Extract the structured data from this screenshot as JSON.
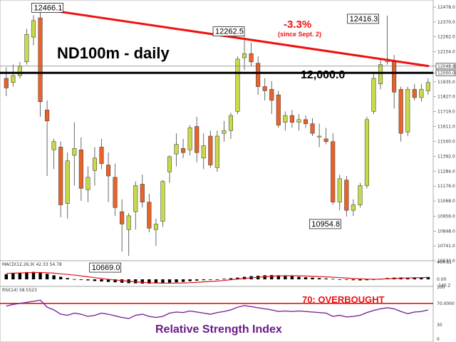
{
  "chart_data": [
    {
      "type": "candlestick",
      "title": "ND100m - daily",
      "price_axis_ticks": [
        "12478.0",
        "12370.0",
        "12262.0",
        "12154.0",
        "12048.8",
        "12000.0",
        "11935.0",
        "11827.0",
        "11719.0",
        "11611.0",
        "11500.0",
        "11392.0",
        "11284.0",
        "11176.0",
        "11068.0",
        "10956.0",
        "10848.0",
        "10741.0",
        "10633.0"
      ],
      "ylim": [
        10633,
        12530
      ],
      "candles": [
        {
          "o": 11960,
          "h": 12040,
          "l": 11830,
          "c": 11890
        },
        {
          "o": 11930,
          "h": 12060,
          "l": 11900,
          "c": 11980
        },
        {
          "o": 11980,
          "h": 12080,
          "l": 11960,
          "c": 12050
        },
        {
          "o": 12080,
          "h": 12320,
          "l": 12060,
          "c": 12280
        },
        {
          "o": 12260,
          "h": 12420,
          "l": 12200,
          "c": 12380
        },
        {
          "o": 12400,
          "h": 12466.1,
          "l": 11680,
          "c": 11790
        },
        {
          "o": 11730,
          "h": 11800,
          "l": 11250,
          "c": 11650
        },
        {
          "o": 11440,
          "h": 11520,
          "l": 11300,
          "c": 11500
        },
        {
          "o": 11460,
          "h": 11500,
          "l": 10950,
          "c": 11040
        },
        {
          "o": 11050,
          "h": 11420,
          "l": 10940,
          "c": 11360
        },
        {
          "o": 11400,
          "h": 11640,
          "l": 11180,
          "c": 11450
        },
        {
          "o": 11440,
          "h": 11530,
          "l": 11070,
          "c": 11160
        },
        {
          "o": 11150,
          "h": 11320,
          "l": 11060,
          "c": 11240
        },
        {
          "o": 11290,
          "h": 11460,
          "l": 11180,
          "c": 11380
        },
        {
          "o": 11460,
          "h": 11520,
          "l": 11300,
          "c": 11340
        },
        {
          "o": 11330,
          "h": 11420,
          "l": 11060,
          "c": 11250
        },
        {
          "o": 11240,
          "h": 11340,
          "l": 10960,
          "c": 11020
        },
        {
          "o": 10990,
          "h": 11080,
          "l": 10700,
          "c": 10900
        },
        {
          "o": 10860,
          "h": 10980,
          "l": 10669,
          "c": 10960
        },
        {
          "o": 10990,
          "h": 11210,
          "l": 10860,
          "c": 11180
        },
        {
          "o": 11190,
          "h": 11260,
          "l": 11020,
          "c": 11060
        },
        {
          "o": 11060,
          "h": 11120,
          "l": 10840,
          "c": 10870
        },
        {
          "o": 10860,
          "h": 10940,
          "l": 10740,
          "c": 10900
        },
        {
          "o": 10920,
          "h": 11220,
          "l": 10880,
          "c": 11210
        },
        {
          "o": 11280,
          "h": 11400,
          "l": 11200,
          "c": 11390
        },
        {
          "o": 11410,
          "h": 11560,
          "l": 11320,
          "c": 11480
        },
        {
          "o": 11450,
          "h": 11520,
          "l": 11380,
          "c": 11420
        },
        {
          "o": 11440,
          "h": 11620,
          "l": 11400,
          "c": 11600
        },
        {
          "o": 11610,
          "h": 11680,
          "l": 11350,
          "c": 11420
        },
        {
          "o": 11380,
          "h": 11560,
          "l": 11300,
          "c": 11470
        },
        {
          "o": 11540,
          "h": 11580,
          "l": 11310,
          "c": 11330
        },
        {
          "o": 11310,
          "h": 11580,
          "l": 11280,
          "c": 11540
        },
        {
          "o": 11560,
          "h": 11650,
          "l": 11500,
          "c": 11580
        },
        {
          "o": 11580,
          "h": 11710,
          "l": 11520,
          "c": 11690
        },
        {
          "o": 11720,
          "h": 12120,
          "l": 11700,
          "c": 12100
        },
        {
          "o": 12110,
          "h": 12262.5,
          "l": 12020,
          "c": 12140
        },
        {
          "o": 12140,
          "h": 12220,
          "l": 12050,
          "c": 12080
        },
        {
          "o": 12070,
          "h": 12120,
          "l": 11840,
          "c": 11900
        },
        {
          "o": 11900,
          "h": 11960,
          "l": 11800,
          "c": 11870
        },
        {
          "o": 11880,
          "h": 11940,
          "l": 11700,
          "c": 11800
        },
        {
          "o": 11840,
          "h": 11870,
          "l": 11600,
          "c": 11620
        },
        {
          "o": 11640,
          "h": 11720,
          "l": 11580,
          "c": 11690
        },
        {
          "o": 11690,
          "h": 11730,
          "l": 11600,
          "c": 11640
        },
        {
          "o": 11640,
          "h": 11700,
          "l": 11580,
          "c": 11660
        },
        {
          "o": 11660,
          "h": 11690,
          "l": 11600,
          "c": 11630
        },
        {
          "o": 11630,
          "h": 11670,
          "l": 11540,
          "c": 11560
        },
        {
          "o": 11540,
          "h": 11630,
          "l": 11460,
          "c": 11540
        },
        {
          "o": 11520,
          "h": 11600,
          "l": 11480,
          "c": 11500
        },
        {
          "o": 11500,
          "h": 11560,
          "l": 11040,
          "c": 11060
        },
        {
          "o": 11060,
          "h": 11260,
          "l": 11000,
          "c": 11230
        },
        {
          "o": 11220,
          "h": 11250,
          "l": 10954.8,
          "c": 11000
        },
        {
          "o": 11000,
          "h": 11080,
          "l": 10960,
          "c": 11040
        },
        {
          "o": 11040,
          "h": 11200,
          "l": 11020,
          "c": 11180
        },
        {
          "o": 11180,
          "h": 11680,
          "l": 11160,
          "c": 11660
        },
        {
          "o": 11720,
          "h": 12000,
          "l": 11700,
          "c": 11960
        },
        {
          "o": 11920,
          "h": 12100,
          "l": 11880,
          "c": 12060
        },
        {
          "o": 12080,
          "h": 12416.3,
          "l": 12060,
          "c": 12100
        },
        {
          "o": 12080,
          "h": 12130,
          "l": 11740,
          "c": 11860
        },
        {
          "o": 11880,
          "h": 11900,
          "l": 11500,
          "c": 11560
        },
        {
          "o": 11570,
          "h": 11900,
          "l": 11540,
          "c": 11880
        },
        {
          "o": 11880,
          "h": 11920,
          "l": 11800,
          "c": 11820
        },
        {
          "o": 11820,
          "h": 11920,
          "l": 11790,
          "c": 11880
        },
        {
          "o": 11870,
          "h": 11960,
          "l": 11840,
          "c": 11930
        }
      ],
      "price_labels": [
        {
          "value": "12466.1",
          "candle": 5,
          "price": 12466.1,
          "side": "left"
        },
        {
          "value": "12262.5",
          "candle": 35,
          "price": 12262.5,
          "side": "left"
        },
        {
          "value": "12416.3",
          "candle": 56,
          "price": 12416.3,
          "side": "left"
        },
        {
          "value": "10669.0",
          "candle": 18,
          "price": 10669,
          "side": "left"
        },
        {
          "value": "10954.8",
          "candle": 50,
          "price": 10954.8,
          "side": "left"
        }
      ],
      "trendline": {
        "from": {
          "candle": 5,
          "price": 12466.1
        },
        "to": {
          "candle": 62,
          "price": 12050
        }
      },
      "horizontal_level": {
        "price": 12000,
        "label": "12,000.0"
      },
      "annotations": {
        "change": "-3.3%",
        "change_note": "(since Sept. 2)"
      },
      "colors": {
        "bull": "#c8d94a",
        "bear": "#e8632a",
        "trendline": "#ee1111",
        "level": "#000000"
      }
    },
    {
      "type": "bar",
      "indicator": "MACD",
      "header": "MACD(12,26,9) 42.33 54.78",
      "axis_ticks": [
        "404.61",
        "0.00",
        "-140.2"
      ],
      "ylim": [
        -150,
        420
      ],
      "values": [
        120,
        150,
        160,
        170,
        175,
        165,
        130,
        95,
        60,
        30,
        5,
        -15,
        -25,
        -40,
        -50,
        -60,
        -70,
        -80,
        -90,
        -95,
        -100,
        -100,
        -95,
        -90,
        -80,
        -70,
        -60,
        -45,
        -30,
        -20,
        -10,
        0,
        15,
        25,
        40,
        60,
        75,
        85,
        95,
        100,
        95,
        85,
        75,
        60,
        50,
        40,
        30,
        20,
        10,
        0,
        -10,
        -20,
        -25,
        -20,
        -10,
        10,
        30,
        40,
        45,
        40,
        45,
        50,
        55
      ],
      "signal": [
        140,
        145,
        150,
        155,
        160,
        160,
        155,
        145,
        130,
        115,
        100,
        80,
        60,
        40,
        20,
        0,
        -15,
        -30,
        -45,
        -60,
        -70,
        -80,
        -85,
        -90,
        -90,
        -88,
        -85,
        -80,
        -70,
        -60,
        -50,
        -40,
        -25,
        -10,
        5,
        20,
        35,
        50,
        62,
        72,
        80,
        85,
        85,
        82,
        78,
        72,
        65,
        58,
        50,
        40,
        30,
        20,
        12,
        5,
        2,
        5,
        12,
        20,
        28,
        33,
        37,
        41,
        45
      ],
      "colors": {
        "bars": "#000000",
        "signal": "#e01010"
      }
    },
    {
      "type": "line",
      "indicator": "RSI",
      "header": "RSI(14) 58.5523",
      "axis_ticks": [
        "100",
        "70.0000",
        "30",
        "0"
      ],
      "ylim": [
        0,
        100
      ],
      "values": [
        65,
        68,
        70,
        72,
        74,
        76,
        63,
        58,
        50,
        48,
        52,
        50,
        46,
        48,
        52,
        50,
        47,
        44,
        42,
        48,
        50,
        46,
        44,
        46,
        52,
        54,
        53,
        56,
        54,
        52,
        50,
        53,
        55,
        58,
        63,
        66,
        64,
        62,
        60,
        58,
        55,
        56,
        55,
        56,
        55,
        54,
        53,
        52,
        46,
        48,
        45,
        46,
        48,
        53,
        57,
        60,
        62,
        60,
        55,
        51,
        54,
        55,
        58
      ],
      "level": {
        "value": 70,
        "label": "70: OVERBOUGHT"
      },
      "footer": "Relative Strength Index",
      "colors": {
        "line": "#7a2a9e",
        "level": "#ee1111",
        "footer": "#6a1a8a"
      }
    }
  ]
}
